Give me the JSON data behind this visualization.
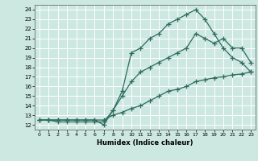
{
  "xlabel": "Humidex (Indice chaleur)",
  "bg_color": "#cce8e0",
  "grid_color": "#ffffff",
  "line_color": "#2e6b5e",
  "xlim": [
    -0.5,
    23.5
  ],
  "ylim": [
    11.5,
    24.5
  ],
  "xticks": [
    0,
    1,
    2,
    3,
    4,
    5,
    6,
    7,
    8,
    9,
    10,
    11,
    12,
    13,
    14,
    15,
    16,
    17,
    18,
    19,
    20,
    21,
    22,
    23
  ],
  "yticks": [
    12,
    13,
    14,
    15,
    16,
    17,
    18,
    19,
    20,
    21,
    22,
    23,
    24
  ],
  "line1_x": [
    0,
    1,
    2,
    3,
    4,
    5,
    6,
    7,
    8,
    9,
    10,
    11,
    12,
    13,
    14,
    15,
    16,
    17,
    18,
    19,
    20,
    21,
    22,
    23
  ],
  "line1_y": [
    12.5,
    12.5,
    12.5,
    12.5,
    12.5,
    12.5,
    12.5,
    12.0,
    13.5,
    15.5,
    19.5,
    20.0,
    21.0,
    21.5,
    22.5,
    23.0,
    23.5,
    24.0,
    23.0,
    21.5,
    20.0,
    19.0,
    18.5,
    17.5
  ],
  "line2_x": [
    0,
    1,
    2,
    3,
    4,
    5,
    6,
    7,
    8,
    9,
    10,
    11,
    12,
    13,
    14,
    15,
    16,
    17,
    18,
    19,
    20,
    21,
    22,
    23
  ],
  "line2_y": [
    12.5,
    12.5,
    12.3,
    12.3,
    12.3,
    12.3,
    12.3,
    12.3,
    13.5,
    15.0,
    16.5,
    17.5,
    18.0,
    18.5,
    19.0,
    19.5,
    20.0,
    21.5,
    21.0,
    20.5,
    21.0,
    20.0,
    20.0,
    18.5
  ],
  "line3_x": [
    0,
    1,
    2,
    3,
    4,
    5,
    6,
    7,
    8,
    9,
    10,
    11,
    12,
    13,
    14,
    15,
    16,
    17,
    18,
    19,
    20,
    21,
    22,
    23
  ],
  "line3_y": [
    12.5,
    12.5,
    12.5,
    12.5,
    12.5,
    12.5,
    12.5,
    12.5,
    13.0,
    13.3,
    13.7,
    14.0,
    14.5,
    15.0,
    15.5,
    15.7,
    16.0,
    16.5,
    16.7,
    16.9,
    17.0,
    17.2,
    17.3,
    17.5
  ]
}
